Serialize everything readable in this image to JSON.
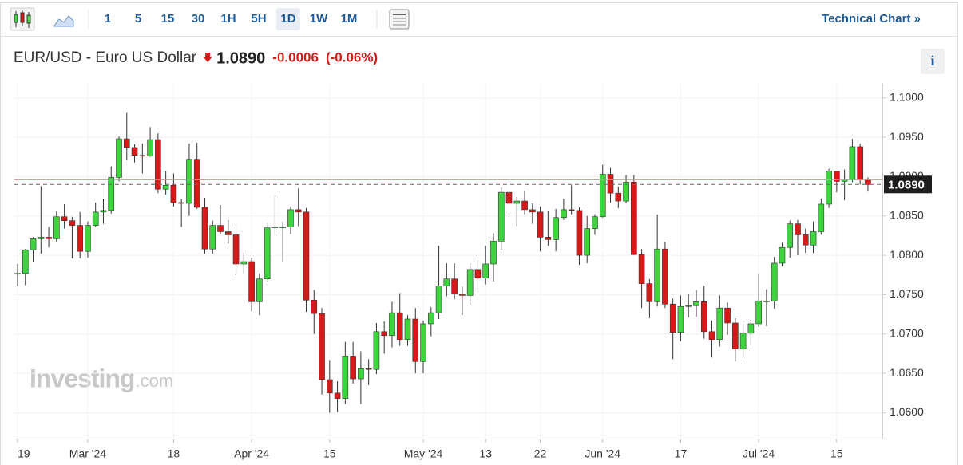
{
  "toolbar": {
    "intervals": [
      "1",
      "5",
      "15",
      "30",
      "1H",
      "5H",
      "1D",
      "1W",
      "1M"
    ],
    "active": "1D",
    "technical_chart": "Technical Chart »"
  },
  "instrument": {
    "name": "EUR/USD - Euro US Dollar",
    "price": "1.0890",
    "change": "-0.0006",
    "change_percent": "(-0.06%)",
    "info": "i"
  },
  "watermark": {
    "brand": "Investing",
    "suffix": ".com"
  },
  "chart_data": {
    "type": "candlestick",
    "categories": [
      "19",
      null,
      null,
      null,
      null,
      null,
      null,
      null,
      null,
      "Mar '24",
      null,
      null,
      null,
      null,
      null,
      null,
      null,
      null,
      null,
      null,
      "18",
      null,
      null,
      null,
      null,
      null,
      null,
      null,
      null,
      null,
      "Apr '24",
      null,
      null,
      null,
      null,
      null,
      null,
      null,
      null,
      null,
      "15",
      null,
      null,
      null,
      null,
      null,
      null,
      null,
      null,
      null,
      null,
      null,
      "May '24",
      null,
      null,
      null,
      null,
      null,
      null,
      null,
      "13",
      null,
      null,
      null,
      null,
      null,
      null,
      "22",
      null,
      null,
      null,
      null,
      null,
      null,
      null,
      "Jun '24",
      null,
      null,
      null,
      null,
      null,
      null,
      null,
      null,
      null,
      "17",
      null,
      null,
      null,
      null,
      null,
      null,
      null,
      null,
      null,
      "Jul '24",
      null,
      null,
      null,
      null,
      null,
      null,
      null,
      null,
      null,
      "15",
      null,
      null,
      null,
      null
    ],
    "open": [
      1.0776,
      1.0777,
      1.0807,
      1.0821,
      1.0823,
      1.0821,
      1.0849,
      1.0844,
      1.0838,
      1.0805,
      1.0838,
      1.0855,
      1.0857,
      1.0899,
      1.0948,
      1.0937,
      1.0927,
      1.0926,
      1.0947,
      1.0884,
      1.0889,
      1.0867,
      1.0866,
      1.0922,
      1.0861,
      1.0808,
      1.0838,
      1.083,
      1.0826,
      1.0789,
      1.0792,
      1.0741,
      1.077,
      1.0835,
      1.0836,
      1.0836,
      1.0858,
      1.0855,
      1.0743,
      1.0726,
      1.0642,
      1.0625,
      1.0618,
      1.0672,
      1.0643,
      1.0656,
      1.0655,
      1.0703,
      1.0698,
      1.0727,
      1.0693,
      1.0719,
      1.0665,
      1.0713,
      1.0727,
      1.0761,
      1.077,
      1.0751,
      1.0749,
      1.0782,
      1.0771,
      1.0789,
      1.0818,
      1.088,
      1.0866,
      1.0869,
      1.0858,
      1.0855,
      1.0823,
      1.082,
      1.0848,
      1.0858,
      1.0857,
      1.08,
      1.0834,
      1.0849,
      1.0903,
      1.0879,
      1.0869,
      1.0893,
      1.0801,
      1.0764,
      1.0741,
      1.0808,
      1.0738,
      1.0702,
      1.0735,
      1.0736,
      1.0741,
      1.0703,
      1.0693,
      1.0733,
      1.0714,
      1.0681,
      1.0701,
      1.0713,
      1.0742,
      1.0742,
      1.079,
      1.081,
      1.084,
      1.0826,
      1.0813,
      1.083,
      1.0865,
      1.0907,
      1.0894,
      1.0896,
      1.0938,
      1.0896
    ],
    "high": [
      1.0789,
      1.0808,
      1.0823,
      1.0888,
      1.0836,
      1.0856,
      1.0865,
      1.0849,
      1.0855,
      1.0843,
      1.0867,
      1.0872,
      1.0913,
      1.0951,
      1.0981,
      1.0941,
      1.0942,
      1.0963,
      1.0955,
      1.0907,
      1.0904,
      1.0872,
      1.0942,
      1.0943,
      1.0873,
      1.0844,
      1.0864,
      1.0845,
      1.0839,
      1.0803,
      1.0797,
      1.0777,
      1.0841,
      1.0876,
      1.0843,
      1.0862,
      1.0885,
      1.086,
      1.0756,
      1.0733,
      1.0667,
      1.064,
      1.069,
      1.069,
      1.0678,
      1.0668,
      1.0714,
      1.0716,
      1.0741,
      1.0752,
      1.0724,
      1.0733,
      1.0717,
      1.0734,
      1.0812,
      1.079,
      1.079,
      1.076,
      1.079,
      1.0794,
      1.0812,
      1.0828,
      1.0886,
      1.0895,
      1.0874,
      1.0882,
      1.0866,
      1.0862,
      1.0857,
      1.0859,
      1.0872,
      1.0889,
      1.0861,
      1.085,
      1.0852,
      1.0915,
      1.0911,
      1.0887,
      1.0902,
      1.0902,
      1.0808,
      1.077,
      1.0852,
      1.0817,
      1.0745,
      1.0749,
      1.0751,
      1.0756,
      1.0761,
      1.0717,
      1.0749,
      1.074,
      1.072,
      1.0717,
      1.0718,
      1.0776,
      1.0757,
      1.0798,
      1.0816,
      1.0844,
      1.0845,
      1.0834,
      1.0843,
      1.0872,
      1.091,
      1.0904,
      1.0909,
      1.0948,
      1.0942,
      1.0899
    ],
    "low": [
      1.0761,
      1.0762,
      1.0792,
      1.0802,
      1.081,
      1.0817,
      1.0834,
      1.0796,
      1.0796,
      1.0797,
      1.0836,
      1.084,
      1.0853,
      1.0894,
      1.0921,
      1.0918,
      1.0904,
      1.0925,
      1.0879,
      1.0877,
      1.0862,
      1.0836,
      1.085,
      1.0859,
      1.0802,
      1.0802,
      1.0827,
      1.0815,
      1.0775,
      1.0776,
      1.0729,
      1.0724,
      1.0766,
      1.0826,
      1.0792,
      1.0827,
      1.0837,
      1.0728,
      1.07,
      1.0623,
      1.06,
      1.0601,
      1.0611,
      1.0637,
      1.0611,
      1.0635,
      1.0649,
      1.0675,
      1.0683,
      1.0685,
      1.0685,
      1.065,
      1.065,
      1.0697,
      1.0719,
      1.0748,
      1.0744,
      1.0724,
      1.0737,
      1.0757,
      1.0763,
      1.0767,
      1.0807,
      1.0856,
      1.0837,
      1.0852,
      1.084,
      1.0805,
      1.0812,
      1.0805,
      1.0845,
      1.0852,
      1.0788,
      1.079,
      1.0826,
      1.0848,
      1.0867,
      1.086,
      1.0866,
      1.08,
      1.0733,
      1.072,
      1.0735,
      1.0733,
      1.0668,
      1.0691,
      1.0721,
      1.0722,
      1.0694,
      1.067,
      1.0684,
      1.0699,
      1.0665,
      1.0669,
      1.0685,
      1.0709,
      1.071,
      1.0732,
      1.0786,
      1.0797,
      1.08,
      1.0803,
      1.0803,
      1.0826,
      1.086,
      1.088,
      1.087,
      1.0893,
      1.089,
      1.0881
    ],
    "close": [
      1.0777,
      1.0807,
      1.0821,
      1.0823,
      1.0821,
      1.0849,
      1.0844,
      1.0838,
      1.0805,
      1.0838,
      1.0855,
      1.0857,
      1.0899,
      1.0948,
      1.0937,
      1.0927,
      1.0926,
      1.0947,
      1.0884,
      1.0889,
      1.0867,
      1.0866,
      1.0922,
      1.0861,
      1.0808,
      1.0838,
      1.083,
      1.0826,
      1.0789,
      1.0792,
      1.0741,
      1.077,
      1.0835,
      1.0836,
      1.0836,
      1.0858,
      1.0855,
      1.0743,
      1.0726,
      1.0642,
      1.0625,
      1.0618,
      1.0672,
      1.0643,
      1.0656,
      1.0655,
      1.0703,
      1.0698,
      1.0727,
      1.0693,
      1.0719,
      1.0665,
      1.0713,
      1.0727,
      1.0761,
      1.077,
      1.0751,
      1.0749,
      1.0782,
      1.0771,
      1.0789,
      1.0818,
      1.088,
      1.0866,
      1.0869,
      1.0858,
      1.0855,
      1.0823,
      1.082,
      1.0848,
      1.0858,
      1.0857,
      1.08,
      1.0834,
      1.0849,
      1.0903,
      1.0879,
      1.0869,
      1.0893,
      1.0801,
      1.0764,
      1.0741,
      1.0808,
      1.0738,
      1.0702,
      1.0735,
      1.0736,
      1.0741,
      1.0703,
      1.0693,
      1.0733,
      1.0714,
      1.0681,
      1.0701,
      1.0713,
      1.0742,
      1.0742,
      1.079,
      1.081,
      1.084,
      1.0826,
      1.0813,
      1.083,
      1.0865,
      1.0907,
      1.0894,
      1.0896,
      1.0938,
      1.0896,
      1.089
    ],
    "up_color": "#3ed43e",
    "down_color": "#d61a1a",
    "ylim": [
      1.0567,
      1.1018
    ],
    "yticks": [
      {
        "value": 1.06,
        "label": "1.0600"
      },
      {
        "value": 1.065,
        "label": "1.0650"
      },
      {
        "value": 1.07,
        "label": "1.0700"
      },
      {
        "value": 1.075,
        "label": "1.0750"
      },
      {
        "value": 1.08,
        "label": "1.0800"
      },
      {
        "value": 1.085,
        "label": "1.0850"
      },
      {
        "value": 1.09,
        "label": "1.0900"
      },
      {
        "value": 1.095,
        "label": "1.0950"
      },
      {
        "value": 1.1,
        "label": "1.1000"
      }
    ],
    "previous_close": 1.0896,
    "last_price": {
      "value": 1.089,
      "label": "1.0890"
    },
    "grid": true
  }
}
